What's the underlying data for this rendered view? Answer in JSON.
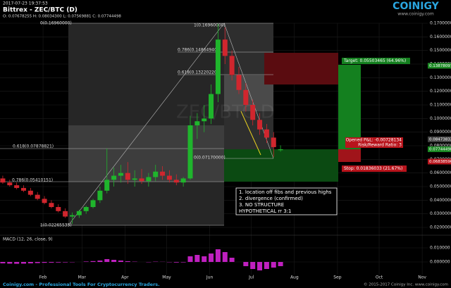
{
  "header": {
    "timestamp": "2017-07-23 19:37:53",
    "logo": "COINIGY",
    "logo_url": "www.coinigy.com"
  },
  "footer": {
    "left": "Coinigy.com - Professional Tools For Cryptocurrency Traders.",
    "right": "© 2015-2017 Coinigy Inc. www.coinigy.com"
  },
  "chart_data": [
    {
      "type": "candlestick",
      "title": "Bittrex - ZEC/BTC (D)",
      "subtitle": "O: 0.07678255 H: 0.08034300 L: 0.07569881 C: 0.07744498",
      "watermark": "ZEC/BTC D",
      "x": [
        2,
        7,
        12,
        17,
        22,
        27,
        32,
        37,
        42,
        47,
        52,
        57,
        62,
        67,
        72,
        77,
        82,
        87,
        92,
        97,
        102,
        107,
        112,
        117,
        122,
        127,
        132,
        137,
        142,
        147,
        152,
        157,
        162,
        167,
        172,
        177,
        182,
        187,
        192,
        197,
        202
      ],
      "open": [
        0.056,
        0.053,
        0.051,
        0.049,
        0.047,
        0.044,
        0.041,
        0.038,
        0.035,
        0.032,
        0.028,
        0.029,
        0.032,
        0.035,
        0.04,
        0.047,
        0.055,
        0.058,
        0.06,
        0.055,
        0.056,
        0.054,
        0.057,
        0.061,
        0.058,
        0.055,
        0.053,
        0.056,
        0.095,
        0.098,
        0.1,
        0.118,
        0.158,
        0.146,
        0.132,
        0.121,
        0.11,
        0.099,
        0.092,
        0.086,
        0.07678255
      ],
      "high": [
        0.058,
        0.055,
        0.053,
        0.051,
        0.049,
        0.046,
        0.043,
        0.04,
        0.037,
        0.034,
        0.031,
        0.033,
        0.036,
        0.041,
        0.05,
        0.078,
        0.064,
        0.066,
        0.068,
        0.062,
        0.063,
        0.06,
        0.066,
        0.065,
        0.062,
        0.059,
        0.057,
        0.102,
        0.104,
        0.11,
        0.125,
        0.1696,
        0.167,
        0.15,
        0.138,
        0.126,
        0.114,
        0.104,
        0.096,
        0.09,
        0.080343
      ],
      "low": [
        0.052,
        0.05,
        0.048,
        0.046,
        0.043,
        0.04,
        0.037,
        0.034,
        0.031,
        0.027,
        0.02265535,
        0.027,
        0.03,
        0.034,
        0.038,
        0.045,
        0.05,
        0.053,
        0.052,
        0.05,
        0.052,
        0.05,
        0.054,
        0.055,
        0.053,
        0.051,
        0.05,
        0.055,
        0.085,
        0.09,
        0.096,
        0.112,
        0.14,
        0.128,
        0.118,
        0.105,
        0.095,
        0.088,
        0.082,
        0.0717,
        0.07569881
      ],
      "close": [
        0.053,
        0.051,
        0.049,
        0.047,
        0.044,
        0.041,
        0.038,
        0.035,
        0.032,
        0.028,
        0.029,
        0.032,
        0.035,
        0.04,
        0.047,
        0.055,
        0.058,
        0.06,
        0.055,
        0.056,
        0.054,
        0.057,
        0.061,
        0.058,
        0.055,
        0.053,
        0.056,
        0.095,
        0.098,
        0.1,
        0.118,
        0.158,
        0.146,
        0.132,
        0.121,
        0.11,
        0.099,
        0.092,
        0.086,
        0.079,
        0.07744498
      ],
      "up_color": "#1fb52c",
      "down_color": "#d0262e",
      "xlim": [
        0,
        308
      ],
      "xticks": [
        {
          "value": 31,
          "label": "Feb"
        },
        {
          "value": 59,
          "label": "Mar"
        },
        {
          "value": 90,
          "label": "Apr"
        },
        {
          "value": 120,
          "label": "May"
        },
        {
          "value": 151,
          "label": "Jun"
        },
        {
          "value": 181,
          "label": "Jul"
        },
        {
          "value": 212,
          "label": "Aug"
        },
        {
          "value": 243,
          "label": "Sep"
        },
        {
          "value": 273,
          "label": "Oct"
        },
        {
          "value": 304,
          "label": "Nov"
        }
      ],
      "ylim": [
        0.02,
        0.17
      ],
      "yticks": [
        {
          "value": 0.17,
          "label": "0.17000000"
        },
        {
          "value": 0.16,
          "label": "0.16000000"
        },
        {
          "value": 0.15,
          "label": "0.15000000"
        },
        {
          "value": 0.14,
          "label": "0.14000000"
        },
        {
          "value": 0.13,
          "label": "0.13000000"
        },
        {
          "value": 0.12,
          "label": "0.12000000"
        },
        {
          "value": 0.11,
          "label": "0.11000000"
        },
        {
          "value": 0.1,
          "label": "0.10000000"
        },
        {
          "value": 0.09,
          "label": "0.09000000"
        },
        {
          "value": 0.08,
          "label": "0.08000000"
        },
        {
          "value": 0.07,
          "label": "0.07000000"
        },
        {
          "value": 0.06,
          "label": "0.06000000"
        },
        {
          "value": 0.05,
          "label": "0.05000000"
        },
        {
          "value": 0.04,
          "label": "0.04000000"
        },
        {
          "value": 0.03,
          "label": "0.03000000"
        },
        {
          "value": 0.02,
          "label": "0.02000000"
        }
      ],
      "grid": true,
      "price_labels": [
        {
          "value": 0.13878097,
          "color": "#1c8a24"
        },
        {
          "value": 0.08473832,
          "color": "#444444"
        },
        {
          "value": 0.07744498,
          "color": "#1c8a24"
        },
        {
          "value": 0.06838596,
          "color": "#b8141c"
        }
      ],
      "fib_labels": [
        "0(0.16960000)",
        "1(0.16960000)",
        "0.786(0.14864940)",
        "0.618(0.13220220)",
        "0.618(0.07878821)",
        "0(0.07170000)",
        "0.786(0.05410151)",
        "1(0.02265535)"
      ],
      "trade_labels": [
        "Target: 0.05503465 (64.96%)",
        "Opened P&L: -0.00728134",
        "Risk/Reward Ratio: 3",
        "Stop: 0.01836033 (21.67%)"
      ],
      "notes": [
        "1. location off fibs and previous highs",
        "2. divergence (confirmed)",
        "3. NO STRUCTURE",
        "HYPOTHETICAL rr 3:1"
      ]
    },
    {
      "type": "bar",
      "title": "MACD (12, 26, close, 9)",
      "color": "#c020c0",
      "x": [
        2,
        7,
        12,
        17,
        22,
        27,
        32,
        37,
        42,
        47,
        52,
        57,
        62,
        67,
        72,
        77,
        82,
        87,
        92,
        97,
        102,
        107,
        112,
        117,
        122,
        127,
        132,
        137,
        142,
        147,
        152,
        157,
        162,
        167,
        172,
        177,
        182,
        187,
        192,
        197,
        202
      ],
      "values": [
        -0.001,
        -0.0012,
        -0.0013,
        -0.0012,
        -0.001,
        -0.0008,
        -0.0006,
        -0.0005,
        -0.0004,
        -0.0003,
        -0.0002,
        0,
        0.0003,
        0.0006,
        0.001,
        0.002,
        0.0015,
        0.001,
        0.0005,
        0.0002,
        0,
        -0.0002,
        0.0002,
        0.0001,
        -0.0002,
        -0.0004,
        -0.0003,
        0.004,
        0.005,
        0.004,
        0.006,
        0.009,
        0.007,
        0.003,
        0,
        -0.003,
        -0.005,
        -0.006,
        -0.005,
        -0.004,
        -0.003
      ],
      "xlim": [
        0,
        308
      ],
      "ylim": [
        -0.008,
        0.016
      ],
      "yticks": [
        {
          "value": 0.01,
          "label": "0.010000"
        },
        {
          "value": 0,
          "label": "0.000000"
        }
      ]
    }
  ]
}
